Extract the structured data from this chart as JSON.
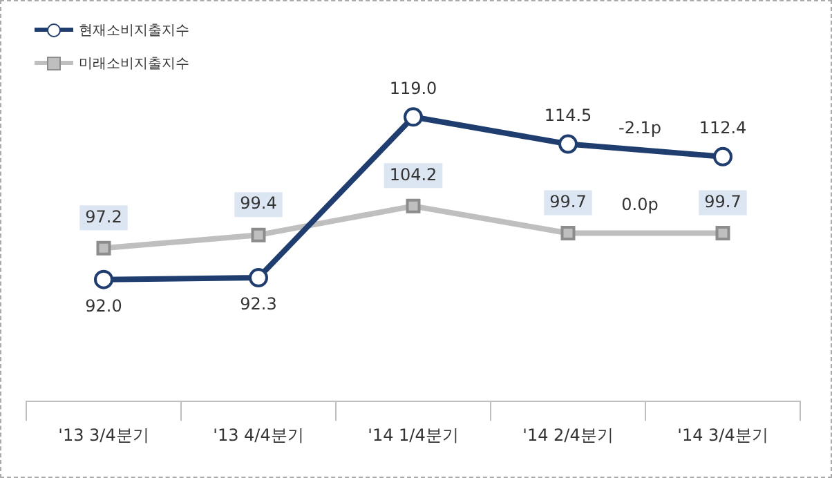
{
  "chart_data": {
    "type": "line",
    "categories": [
      "'13 3/4분기",
      "'13 4/4분기",
      "'14 1/4분기",
      "'14 2/4분기",
      "'14 3/4분기"
    ],
    "series": [
      {
        "name": "현재소비지출지수",
        "color": "#1f3d6e",
        "marker": "circle",
        "values": [
          92.0,
          92.3,
          119.0,
          114.5,
          112.4
        ],
        "value_labels": [
          "92.0",
          "92.3",
          "119.0",
          "114.5",
          "112.4"
        ]
      },
      {
        "name": "미래소비지출지수",
        "color": "#bfbfbf",
        "marker": "square",
        "values": [
          97.2,
          99.4,
          104.2,
          99.7,
          99.7
        ],
        "value_labels": [
          "97.2",
          "99.4",
          "104.2",
          "99.7",
          "99.7"
        ]
      }
    ],
    "legend": "top left",
    "annotations": [
      "-2.1p",
      "0.0p"
    ]
  }
}
